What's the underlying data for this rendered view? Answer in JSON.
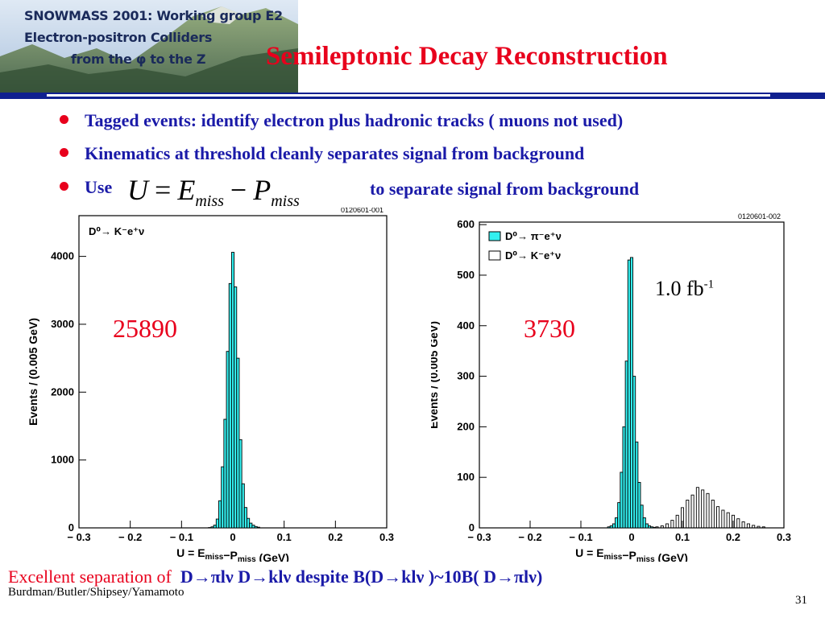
{
  "header": {
    "lines": [
      "SNOWMASS 2001: Working group E2",
      "Electron-positron Colliders",
      "from the φ to the Z"
    ]
  },
  "slide": {
    "title": "Semileptonic Decay Reconstruction",
    "bullets": [
      "Tagged events: identify electron plus hadronic tracks ( muons not used)",
      "Kinematics at threshold cleanly separates signal from background",
      "Use"
    ],
    "formula": {
      "U": "U",
      "eq": "=",
      "E": "E",
      "miss": "miss",
      "minus": "−",
      "P": "P"
    },
    "formula_after": "to separate signal from background",
    "annotations": {
      "count_left": "25890",
      "count_right": "3730",
      "lumi": "1.0 fb",
      "lumi_exp": "-1"
    },
    "bottom_red": "Excellent separation of",
    "bottom_blue": "D→πlν  D→klν  despite B(D→klν )~10B( D→πlν)",
    "credits": "Burdman/Butler/Shipsey/Yamamoto",
    "page": "31"
  },
  "colors": {
    "title": "#e8001c",
    "bullet_text": "#1a1aa8",
    "bullet_dot": "#e8001c",
    "rule": "#102090",
    "hist_fill": "#33f0f0"
  },
  "chart_data": [
    {
      "type": "bar",
      "code": "0120601-001",
      "xlabel": "U = E",
      "xlabel_sub1": "miss",
      "xlabel_mid": "−P",
      "xlabel_sub2": "miss",
      "xlabel_unit": "(GeV)",
      "ylabel": "Events / (0.005 GeV)",
      "xlim": [
        -0.3,
        0.3
      ],
      "ylim": [
        0,
        4600
      ],
      "xticks": [
        -0.3,
        -0.2,
        -0.1,
        0,
        0.1,
        0.2,
        0.3
      ],
      "xtick_labels": [
        "− 0.3",
        "− 0.2",
        "− 0.1",
        "0",
        "0.1",
        "0.2",
        "0.3"
      ],
      "yticks": [
        0,
        1000,
        2000,
        3000,
        4000
      ],
      "legend": "D⁰→ K⁻e⁺ν",
      "bin_width": 0.005,
      "series": [
        {
          "filled": true,
          "x": [
            -0.045,
            -0.04,
            -0.035,
            -0.03,
            -0.025,
            -0.02,
            -0.015,
            -0.01,
            -0.005,
            0.0,
            0.005,
            0.01,
            0.015,
            0.02,
            0.025,
            0.03,
            0.035,
            0.04,
            0.045,
            0.05
          ],
          "values": [
            5,
            15,
            40,
            130,
            400,
            900,
            1600,
            2600,
            3600,
            4060,
            3550,
            2500,
            1300,
            650,
            300,
            140,
            70,
            40,
            20,
            10
          ]
        }
      ]
    },
    {
      "type": "bar",
      "code": "0120601-002",
      "xlabel": "U = E",
      "xlabel_sub1": "miss",
      "xlabel_mid": "−P",
      "xlabel_sub2": "miss",
      "xlabel_unit": "(GeV)",
      "ylabel": "Events / (0.005 GeV)",
      "xlim": [
        -0.3,
        0.3
      ],
      "ylim": [
        0,
        605
      ],
      "xticks": [
        -0.3,
        -0.2,
        -0.1,
        0,
        0.1,
        0.2,
        0.3
      ],
      "xtick_labels": [
        "− 0.3",
        "− 0.2",
        "− 0.1",
        "0",
        "0.1",
        "0.2",
        "0.3"
      ],
      "yticks": [
        0,
        100,
        200,
        300,
        400,
        500,
        600
      ],
      "bin_width": 0.005,
      "series": [
        {
          "name": "D⁰→ π⁻e⁺ν",
          "filled": true,
          "x": [
            -0.045,
            -0.04,
            -0.035,
            -0.03,
            -0.025,
            -0.02,
            -0.015,
            -0.01,
            -0.005,
            0.0,
            0.005,
            0.01,
            0.015,
            0.02,
            0.025,
            0.03,
            0.035,
            0.04,
            0.045
          ],
          "values": [
            2,
            4,
            8,
            20,
            50,
            110,
            200,
            330,
            530,
            535,
            300,
            170,
            90,
            45,
            20,
            8,
            4,
            2,
            1
          ]
        },
        {
          "name": "D⁰→ K⁻e⁺ν",
          "filled": false,
          "x": [
            0.05,
            0.06,
            0.07,
            0.08,
            0.09,
            0.1,
            0.11,
            0.12,
            0.13,
            0.14,
            0.15,
            0.16,
            0.17,
            0.18,
            0.19,
            0.2,
            0.21,
            0.22,
            0.23,
            0.24,
            0.25,
            0.26
          ],
          "values": [
            2,
            4,
            8,
            15,
            25,
            40,
            55,
            65,
            80,
            75,
            68,
            55,
            42,
            35,
            30,
            25,
            18,
            12,
            8,
            5,
            3,
            2
          ]
        }
      ]
    }
  ]
}
